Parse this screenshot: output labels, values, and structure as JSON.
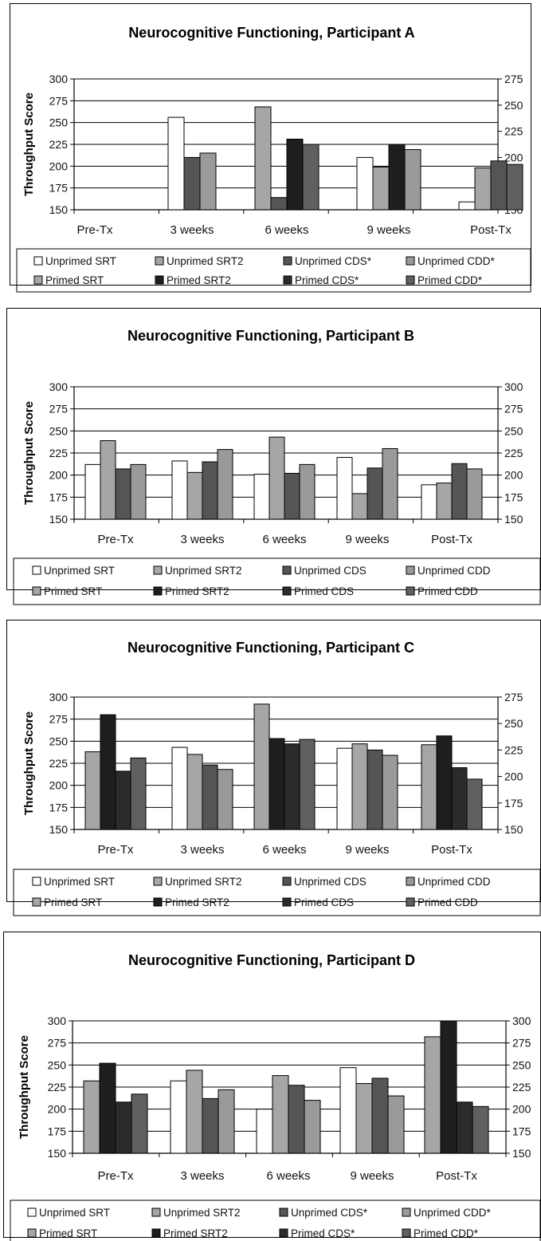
{
  "colors": {
    "unprimed_srt": "#ffffff",
    "unprimed_srt2": "#a6a6a6",
    "unprimed_cds": "#555555",
    "unprimed_cdd": "#9a9a9a",
    "primed_srt": "#a6a6a6",
    "primed_srt2": "#1e1e1e",
    "primed_cds": "#2b2b2b",
    "primed_cdd": "#606060"
  },
  "chart_data": [
    {
      "type": "bar",
      "title": "Neurocognitive Functioning, Participant A",
      "ylabel": "Throughput Score",
      "ylim": [
        150,
        300
      ],
      "y_ticks": [
        "150",
        "175",
        "200",
        "225",
        "250",
        "275",
        "300"
      ],
      "y2lim": [
        150,
        275
      ],
      "y2_ticks": [
        "150",
        "175",
        "200",
        "225",
        "250",
        "275"
      ],
      "grid": true,
      "categories": [
        "Pre-Tx",
        "3 weeks",
        "6 weeks",
        "9 weeks",
        "Post-Tx"
      ],
      "bars": [
        [],
        [
          {
            "color_key": "unprimed_srt",
            "value": 256
          },
          {
            "color_key": "unprimed_cds",
            "value": 210
          },
          {
            "color_key": "unprimed_cdd",
            "value": 215
          }
        ],
        [
          {
            "color_key": "unprimed_srt2",
            "value": 268
          },
          {
            "color_key": "unprimed_cds",
            "value": 164
          },
          {
            "color_key": "primed_srt2",
            "value": 231
          },
          {
            "color_key": "primed_cdd",
            "value": 225
          }
        ],
        [
          {
            "color_key": "unprimed_srt",
            "value": 210
          },
          {
            "color_key": "unprimed_srt2",
            "value": 199
          },
          {
            "color_key": "primed_srt2",
            "value": 225
          },
          {
            "color_key": "unprimed_cdd",
            "value": 219
          }
        ],
        [
          {
            "color_key": "unprimed_srt",
            "value": 159
          },
          {
            "color_key": "unprimed_srt2",
            "value": 198
          },
          {
            "color_key": "unprimed_cds",
            "value": 206
          },
          {
            "color_key": "primed_cdd",
            "value": 202
          }
        ]
      ],
      "legend": [
        {
          "label": "Unprimed SRT",
          "color_key": "unprimed_srt"
        },
        {
          "label": "Unprimed SRT2",
          "color_key": "unprimed_srt2"
        },
        {
          "label": "Unprimed CDS*",
          "color_key": "unprimed_cds"
        },
        {
          "label": "Unprimed CDD*",
          "color_key": "unprimed_cdd"
        },
        {
          "label": "Primed SRT",
          "color_key": "primed_srt"
        },
        {
          "label": "Primed SRT2",
          "color_key": "primed_srt2"
        },
        {
          "label": "Primed CDS*",
          "color_key": "primed_cds"
        },
        {
          "label": "Primed CDD*",
          "color_key": "primed_cdd"
        }
      ]
    },
    {
      "type": "bar",
      "title": "Neurocognitive Functioning, Participant B",
      "ylabel": "Throughput Score",
      "ylim": [
        150,
        300
      ],
      "y_ticks": [
        "150",
        "175",
        "200",
        "225",
        "250",
        "275",
        "300"
      ],
      "y2lim": [
        150,
        300
      ],
      "y2_ticks": [
        "150",
        "175",
        "200",
        "225",
        "250",
        "275",
        "300"
      ],
      "grid": true,
      "categories": [
        "Pre-Tx",
        "3 weeks",
        "6 weeks",
        "9 weeks",
        "Post-Tx"
      ],
      "bars": [
        [
          {
            "color_key": "unprimed_srt",
            "value": 212
          },
          {
            "color_key": "unprimed_srt2",
            "value": 239
          },
          {
            "color_key": "unprimed_cds",
            "value": 207
          },
          {
            "color_key": "unprimed_cdd",
            "value": 212
          }
        ],
        [
          {
            "color_key": "unprimed_srt",
            "value": 216
          },
          {
            "color_key": "unprimed_srt2",
            "value": 203
          },
          {
            "color_key": "unprimed_cds",
            "value": 215
          },
          {
            "color_key": "unprimed_cdd",
            "value": 229
          }
        ],
        [
          {
            "color_key": "unprimed_srt",
            "value": 201
          },
          {
            "color_key": "unprimed_srt2",
            "value": 243
          },
          {
            "color_key": "unprimed_cds",
            "value": 202
          },
          {
            "color_key": "unprimed_cdd",
            "value": 212
          }
        ],
        [
          {
            "color_key": "unprimed_srt",
            "value": 220
          },
          {
            "color_key": "unprimed_srt2",
            "value": 179
          },
          {
            "color_key": "unprimed_cds",
            "value": 208
          },
          {
            "color_key": "unprimed_cdd",
            "value": 230
          }
        ],
        [
          {
            "color_key": "unprimed_srt",
            "value": 189
          },
          {
            "color_key": "unprimed_srt2",
            "value": 191
          },
          {
            "color_key": "unprimed_cds",
            "value": 213
          },
          {
            "color_key": "unprimed_cdd",
            "value": 207
          }
        ]
      ],
      "legend": [
        {
          "label": "Unprimed SRT",
          "color_key": "unprimed_srt"
        },
        {
          "label": "Unprimed SRT2",
          "color_key": "unprimed_srt2"
        },
        {
          "label": "Unprimed CDS",
          "color_key": "unprimed_cds"
        },
        {
          "label": "Unprimed CDD",
          "color_key": "unprimed_cdd"
        },
        {
          "label": "Primed SRT",
          "color_key": "primed_srt"
        },
        {
          "label": "Primed SRT2",
          "color_key": "primed_srt2"
        },
        {
          "label": "Primed CDS",
          "color_key": "primed_cds"
        },
        {
          "label": "Primed CDD",
          "color_key": "primed_cdd"
        }
      ]
    },
    {
      "type": "bar",
      "title": "Neurocognitive Functioning, Participant C",
      "ylabel": "Throughput Score",
      "ylim": [
        150,
        300
      ],
      "y_ticks": [
        "150",
        "175",
        "200",
        "225",
        "250",
        "275",
        "300"
      ],
      "y2lim": [
        150,
        275
      ],
      "y2_ticks": [
        "150",
        "175",
        "200",
        "225",
        "250",
        "275"
      ],
      "grid": true,
      "categories": [
        "Pre-Tx",
        "3 weeks",
        "6 weeks",
        "9 weeks",
        "Post-Tx"
      ],
      "bars": [
        [
          {
            "color_key": "primed_srt",
            "value": 238
          },
          {
            "color_key": "primed_srt2",
            "value": 280
          },
          {
            "color_key": "primed_cds",
            "value": 216
          },
          {
            "color_key": "primed_cdd",
            "value": 231
          }
        ],
        [
          {
            "color_key": "unprimed_srt",
            "value": 243
          },
          {
            "color_key": "unprimed_srt2",
            "value": 235
          },
          {
            "color_key": "unprimed_cds",
            "value": 223
          },
          {
            "color_key": "unprimed_cdd",
            "value": 218
          }
        ],
        [
          {
            "color_key": "primed_srt",
            "value": 292
          },
          {
            "color_key": "primed_srt2",
            "value": 253
          },
          {
            "color_key": "primed_cds",
            "value": 247
          },
          {
            "color_key": "primed_cdd",
            "value": 252
          }
        ],
        [
          {
            "color_key": "unprimed_srt",
            "value": 242
          },
          {
            "color_key": "unprimed_srt2",
            "value": 247
          },
          {
            "color_key": "unprimed_cds",
            "value": 240
          },
          {
            "color_key": "unprimed_cdd",
            "value": 234
          }
        ],
        [
          {
            "color_key": "primed_srt",
            "value": 246
          },
          {
            "color_key": "primed_srt2",
            "value": 256
          },
          {
            "color_key": "primed_cds",
            "value": 220
          },
          {
            "color_key": "primed_cdd",
            "value": 207
          }
        ]
      ],
      "legend": [
        {
          "label": "Unprimed SRT",
          "color_key": "unprimed_srt"
        },
        {
          "label": "Unprimed SRT2",
          "color_key": "unprimed_srt2"
        },
        {
          "label": "Unprimed CDS",
          "color_key": "unprimed_cds"
        },
        {
          "label": "Unprimed CDD",
          "color_key": "unprimed_cdd"
        },
        {
          "label": "Primed SRT",
          "color_key": "primed_srt"
        },
        {
          "label": "Primed SRT2",
          "color_key": "primed_srt2"
        },
        {
          "label": "Primed CDS",
          "color_key": "primed_cds"
        },
        {
          "label": "Primed CDD",
          "color_key": "primed_cdd"
        }
      ]
    },
    {
      "type": "bar",
      "title": "Neurocognitive Functioning, Participant D",
      "ylabel": "Throughput Score",
      "ylim": [
        150,
        300
      ],
      "y_ticks": [
        "150",
        "175",
        "200",
        "225",
        "250",
        "275",
        "300"
      ],
      "y2lim": [
        150,
        300
      ],
      "y2_ticks": [
        "150",
        "175",
        "200",
        "225",
        "250",
        "275",
        "300"
      ],
      "grid": true,
      "categories": [
        "Pre-Tx",
        "3 weeks",
        "6 weeks",
        "9 weeks",
        "Post-Tx"
      ],
      "bars": [
        [
          {
            "color_key": "primed_srt",
            "value": 232
          },
          {
            "color_key": "primed_srt2",
            "value": 252
          },
          {
            "color_key": "primed_cds",
            "value": 208
          },
          {
            "color_key": "primed_cdd",
            "value": 217
          }
        ],
        [
          {
            "color_key": "unprimed_srt",
            "value": 232
          },
          {
            "color_key": "unprimed_srt2",
            "value": 244
          },
          {
            "color_key": "unprimed_cds",
            "value": 212
          },
          {
            "color_key": "unprimed_cdd",
            "value": 222
          }
        ],
        [
          {
            "color_key": "unprimed_srt",
            "value": 200
          },
          {
            "color_key": "unprimed_srt2",
            "value": 238
          },
          {
            "color_key": "unprimed_cds",
            "value": 227
          },
          {
            "color_key": "unprimed_cdd",
            "value": 210
          }
        ],
        [
          {
            "color_key": "unprimed_srt",
            "value": 247
          },
          {
            "color_key": "unprimed_srt2",
            "value": 229
          },
          {
            "color_key": "unprimed_cds",
            "value": 235
          },
          {
            "color_key": "unprimed_cdd",
            "value": 215
          }
        ],
        [
          {
            "color_key": "primed_srt",
            "value": 282
          },
          {
            "color_key": "primed_srt2",
            "value": 300
          },
          {
            "color_key": "primed_cds",
            "value": 208
          },
          {
            "color_key": "primed_cdd",
            "value": 203
          }
        ]
      ],
      "legend": [
        {
          "label": "Unprimed SRT",
          "color_key": "unprimed_srt"
        },
        {
          "label": "Unprimed SRT2",
          "color_key": "unprimed_srt2"
        },
        {
          "label": "Unprimed CDS*",
          "color_key": "unprimed_cds"
        },
        {
          "label": "Unprimed CDD*",
          "color_key": "unprimed_cdd"
        },
        {
          "label": "Primed SRT",
          "color_key": "primed_srt"
        },
        {
          "label": "Primed SRT2",
          "color_key": "primed_srt2"
        },
        {
          "label": "Primed CDS*",
          "color_key": "primed_cds"
        },
        {
          "label": "Primed CDD*",
          "color_key": "primed_cdd"
        }
      ]
    }
  ]
}
